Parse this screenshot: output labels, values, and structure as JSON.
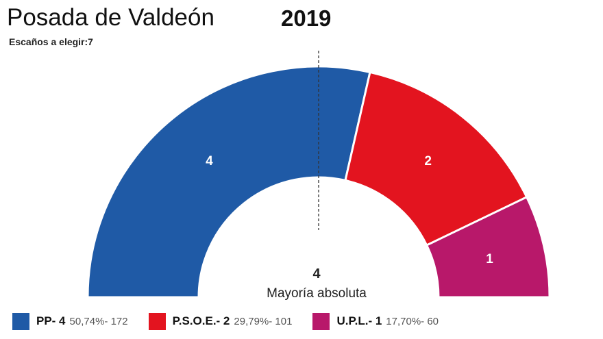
{
  "header": {
    "title": "Posada de Valdeón",
    "subtitle": "Escaños a elegir:7",
    "year": "2019"
  },
  "chart_data": {
    "type": "pie",
    "subtype": "half-donut parliament",
    "total_seats": 7,
    "majority": {
      "value": "4",
      "label": "Mayoría absoluta"
    },
    "series": [
      {
        "name": "PP",
        "legend_label": "PP- 4",
        "seats": 4,
        "seat_label": "4",
        "stats": "50,74%- 172",
        "color": "#1f5aa6"
      },
      {
        "name": "P.S.O.E.",
        "legend_label": "P.S.O.E.- 2",
        "seats": 2,
        "seat_label": "2",
        "stats": "29,79%- 101",
        "color": "#e3141f"
      },
      {
        "name": "U.P.L.",
        "legend_label": "U.P.L.- 1",
        "seats": 1,
        "seat_label": "1",
        "stats": "17,70%- 60",
        "color": "#b8186a"
      }
    ]
  }
}
